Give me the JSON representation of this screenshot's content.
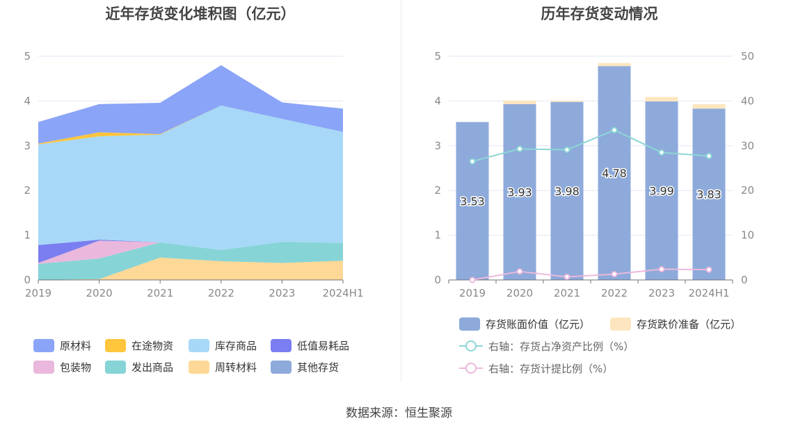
{
  "source": "数据来源：恒生聚源",
  "chart_data": [
    {
      "type": "area",
      "stacked": true,
      "title": "近年存货变化堆积图（亿元）",
      "x": [
        "2019",
        "2020",
        "2021",
        "2022",
        "2023",
        "2024H1"
      ],
      "ylim": [
        0,
        5
      ],
      "yticks": [
        "0",
        "1",
        "2",
        "3",
        "4",
        "5"
      ],
      "grid": true,
      "legend_position": "bottom",
      "series": [
        {
          "name": "原材料",
          "color": "#8aa4f7",
          "values": [
            0.48,
            0.63,
            0.7,
            0.9,
            0.37,
            0.52
          ]
        },
        {
          "name": "在途物资",
          "color": "#ffc53d",
          "values": [
            0.02,
            0.09,
            0.01,
            0.0,
            0.0,
            0.0
          ]
        },
        {
          "name": "库存商品",
          "color": "#a7d8f7",
          "values": [
            2.25,
            2.31,
            2.41,
            3.23,
            2.75,
            2.48
          ]
        },
        {
          "name": "低值易耗品",
          "color": "#7a7ef0",
          "values": [
            0.4,
            0.02,
            0.0,
            0.0,
            0.0,
            0.0
          ]
        },
        {
          "name": "包装物",
          "color": "#e9b8dc",
          "values": [
            0.02,
            0.4,
            0.0,
            0.0,
            0.0,
            0.0
          ]
        },
        {
          "name": "发出商品",
          "color": "#86d4d6",
          "values": [
            0.36,
            0.46,
            0.34,
            0.25,
            0.47,
            0.4
          ]
        },
        {
          "name": "周转材料",
          "color": "#fdd896",
          "values": [
            0.0,
            0.02,
            0.5,
            0.42,
            0.38,
            0.43
          ]
        },
        {
          "name": "其他存货",
          "color": "#8daada",
          "values": [
            0.0,
            0.0,
            0.0,
            0.0,
            0.0,
            0.0
          ]
        }
      ]
    },
    {
      "type": "bar",
      "stacked": true,
      "title": "历年存货变动情况",
      "categories": [
        "2019",
        "2020",
        "2021",
        "2022",
        "2023",
        "2024H1"
      ],
      "ylim": [
        0,
        5
      ],
      "yticks": [
        "0",
        "1",
        "2",
        "3",
        "4",
        "5"
      ],
      "y2lim": [
        0,
        50
      ],
      "y2ticks": [
        "0",
        "10",
        "20",
        "30",
        "40",
        "50"
      ],
      "grid": true,
      "legend_position": "bottom",
      "series": [
        {
          "name": "存货账面价值（亿元）",
          "type": "bar",
          "color": "#8daada",
          "values": [
            3.53,
            3.93,
            3.98,
            4.78,
            3.99,
            3.83
          ],
          "labels": [
            "3.53",
            "3.93",
            "3.98",
            "4.78",
            "3.99",
            "3.83"
          ]
        },
        {
          "name": "存货跌价准备（亿元）",
          "type": "bar",
          "color": "#fde6bf",
          "values": [
            0.0,
            0.08,
            0.03,
            0.07,
            0.1,
            0.1
          ]
        },
        {
          "name": "右轴：存货占净资产比例（%）",
          "type": "line",
          "axis": "right",
          "color": "#8dd6d6",
          "values": [
            26.5,
            29.3,
            29.1,
            33.5,
            28.5,
            27.7
          ]
        },
        {
          "name": "右轴：存货计提比例（%）",
          "type": "line",
          "axis": "right",
          "color": "#ecb8dc",
          "values": [
            0.0,
            1.9,
            0.7,
            1.3,
            2.4,
            2.3
          ]
        }
      ]
    }
  ]
}
